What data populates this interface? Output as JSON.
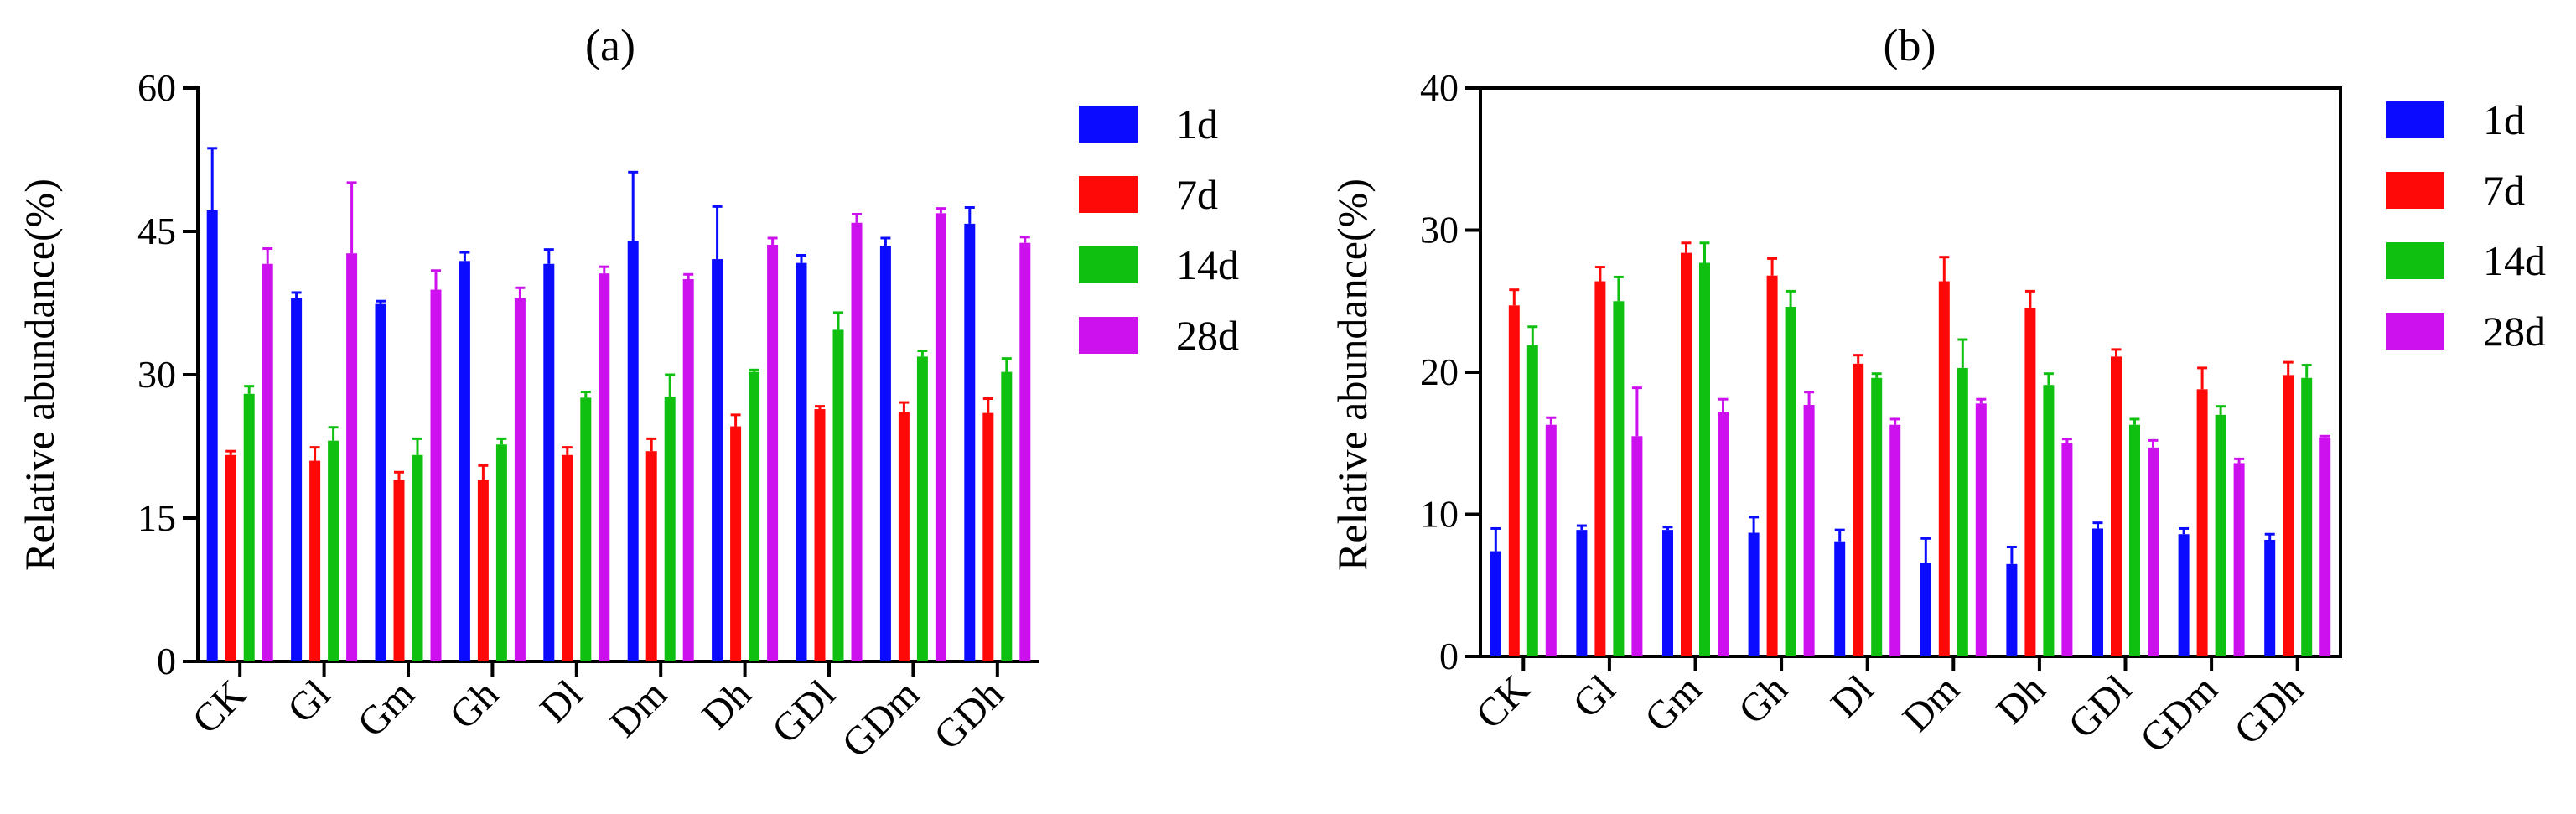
{
  "figure": {
    "legend_labels": [
      "1d",
      "7d",
      "14d",
      "28d"
    ]
  },
  "colors": {
    "1d": "#0b0bff",
    "7d": "#ff0808",
    "14d": "#10c010",
    "28d": "#cc11ee"
  },
  "chart_data": [
    {
      "type": "bar",
      "title": "(a)",
      "xlabel": "",
      "ylabel": "Relative abundance(%)",
      "ylim": [
        0,
        60
      ],
      "yticks": [
        0,
        15,
        30,
        45,
        60
      ],
      "ytick_labels": [
        "0",
        "15",
        "30",
        "45",
        "60"
      ],
      "grid": false,
      "legend_position": "right",
      "categories": [
        "CK",
        "Gl",
        "Gm",
        "Gh",
        "Dl",
        "Dm",
        "Dh",
        "GDl",
        "GDm",
        "GDh"
      ],
      "series": [
        {
          "name": "1d",
          "color_key": "1d",
          "values": [
            47.2,
            38.0,
            37.4,
            41.9,
            41.6,
            44.0,
            42.1,
            41.7,
            43.5,
            45.8
          ],
          "errors": [
            6.5,
            0.6,
            0.3,
            0.9,
            1.5,
            7.2,
            5.5,
            0.8,
            0.8,
            1.7
          ]
        },
        {
          "name": "7d",
          "color_key": "7d",
          "values": [
            21.6,
            21.0,
            19.0,
            19.0,
            21.6,
            22.0,
            24.6,
            26.4,
            26.1,
            26.0
          ],
          "errors": [
            0.4,
            1.4,
            0.8,
            1.5,
            0.8,
            1.3,
            1.2,
            0.3,
            1.0,
            1.5
          ]
        },
        {
          "name": "14d",
          "color_key": "14d",
          "values": [
            28.0,
            23.1,
            21.6,
            22.7,
            27.6,
            27.7,
            30.3,
            34.7,
            31.9,
            30.3
          ],
          "errors": [
            0.8,
            1.4,
            1.7,
            0.6,
            0.6,
            2.3,
            0.2,
            1.8,
            0.6,
            1.4
          ]
        },
        {
          "name": "28d",
          "color_key": "28d",
          "values": [
            41.6,
            42.7,
            38.9,
            38.0,
            40.6,
            40.0,
            43.6,
            45.9,
            46.9,
            43.8
          ],
          "errors": [
            1.6,
            7.4,
            2.0,
            1.1,
            0.7,
            0.5,
            0.7,
            0.9,
            0.5,
            0.6
          ]
        }
      ]
    },
    {
      "type": "bar",
      "title": "(b)",
      "xlabel": "",
      "ylabel": "Relative abundance(%)",
      "ylim": [
        0,
        40
      ],
      "yticks": [
        0,
        10,
        20,
        30,
        40
      ],
      "ytick_labels": [
        "0",
        "10",
        "20",
        "30",
        "40"
      ],
      "grid": false,
      "legend_position": "right",
      "categories": [
        "CK",
        "Gl",
        "Gm",
        "Gh",
        "Dl",
        "Dm",
        "Dh",
        "GDl",
        "GDm",
        "GDh"
      ],
      "series": [
        {
          "name": "1d",
          "color_key": "1d",
          "values": [
            7.4,
            8.9,
            8.9,
            8.7,
            8.1,
            6.6,
            6.5,
            9.0,
            8.6,
            8.2
          ],
          "errors": [
            1.6,
            0.3,
            0.2,
            1.1,
            0.8,
            1.7,
            1.2,
            0.4,
            0.4,
            0.4
          ]
        },
        {
          "name": "7d",
          "color_key": "7d",
          "values": [
            24.7,
            26.4,
            28.4,
            26.8,
            20.6,
            26.4,
            24.5,
            21.1,
            18.8,
            19.8
          ],
          "errors": [
            1.1,
            1.0,
            0.7,
            1.2,
            0.6,
            1.7,
            1.2,
            0.5,
            1.5,
            0.9
          ]
        },
        {
          "name": "14d",
          "color_key": "14d",
          "values": [
            21.9,
            25.0,
            27.7,
            24.6,
            19.6,
            20.3,
            19.1,
            16.3,
            17.0,
            19.6
          ],
          "errors": [
            1.3,
            1.7,
            1.4,
            1.1,
            0.3,
            2.0,
            0.8,
            0.4,
            0.6,
            0.9
          ]
        },
        {
          "name": "28d",
          "color_key": "28d",
          "values": [
            16.3,
            15.5,
            17.2,
            17.7,
            16.3,
            17.8,
            15.0,
            14.7,
            13.6,
            15.4
          ],
          "errors": [
            0.5,
            3.4,
            0.9,
            0.9,
            0.4,
            0.3,
            0.3,
            0.5,
            0.3,
            0.1
          ]
        }
      ]
    }
  ]
}
